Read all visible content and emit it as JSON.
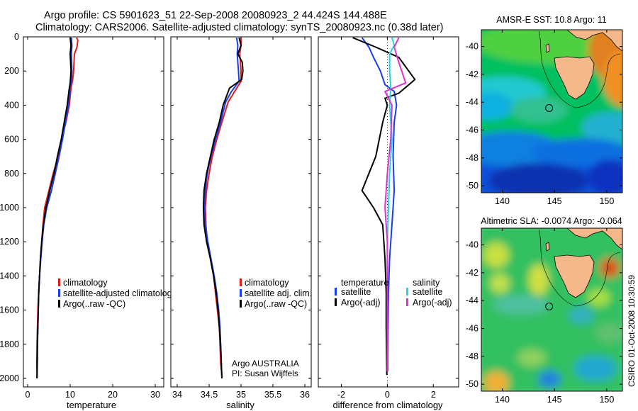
{
  "header": {
    "line1": "Argo profile: CS 5901623_51 22-Sep-2008 20080923_2 44.424S 144.488E",
    "line2": "Climatology: CARS2006. Satellite-adjusted climatology: synTS_20080923.nc (0.38d later)"
  },
  "side_stamp": "CSIRO 01-Oct-2008 10:30:59",
  "colors": {
    "climatology": "#e8191b",
    "satellite": "#1a3cf0",
    "argo": "#000000",
    "sal_satellite": "#22d6e0",
    "sal_argo": "#e030d0",
    "land": "#f5b88a"
  },
  "chart_data": [
    {
      "type": "line",
      "xlabel": "temperature",
      "xlim": [
        -1,
        32
      ],
      "xticks": [
        "0",
        "10",
        "20",
        "30"
      ],
      "xtick_values": [
        0,
        10,
        20,
        30
      ],
      "ylim": [
        0,
        2050
      ],
      "yticks": [
        "0",
        "200",
        "400",
        "600",
        "800",
        "1000",
        "1200",
        "1400",
        "1600",
        "1800",
        "2000"
      ],
      "ytick_values": [
        0,
        200,
        400,
        600,
        800,
        1000,
        1200,
        1400,
        1600,
        1800,
        2000
      ],
      "y_reversed": true,
      "legend": [
        {
          "label": "climatology",
          "color": "#e8191b"
        },
        {
          "label": "satellite-adjusted climatology",
          "color": "#1a3cf0"
        },
        {
          "label": "Argo(..raw -QC)",
          "color": "#000000"
        }
      ],
      "legend_position": "bottom-right",
      "series": [
        {
          "name": "climatology",
          "color": "#e8191b",
          "points": [
            [
              11.5,
              5
            ],
            [
              11.8,
              20
            ],
            [
              11.6,
              60
            ],
            [
              11.0,
              100
            ],
            [
              10.8,
              200
            ],
            [
              10.6,
              250
            ],
            [
              10.2,
              300
            ],
            [
              9.8,
              400
            ],
            [
              9.0,
              500
            ],
            [
              8.0,
              600
            ],
            [
              7.2,
              700
            ],
            [
              6.0,
              800
            ],
            [
              5.0,
              900
            ],
            [
              4.0,
              1000
            ],
            [
              3.6,
              1100
            ],
            [
              3.3,
              1200
            ],
            [
              3.0,
              1300
            ],
            [
              2.8,
              1400
            ],
            [
              2.6,
              1500
            ],
            [
              2.4,
              1600
            ],
            [
              2.3,
              1700
            ],
            [
              2.2,
              1800
            ],
            [
              2.2,
              1900
            ],
            [
              2.2,
              1950
            ]
          ]
        },
        {
          "name": "satellite-adjusted climatology",
          "color": "#1a3cf0",
          "points": [
            [
              10.3,
              5
            ],
            [
              10.4,
              50
            ],
            [
              10.3,
              100
            ],
            [
              10.4,
              200
            ],
            [
              10.3,
              250
            ],
            [
              10.0,
              300
            ],
            [
              9.6,
              400
            ],
            [
              8.9,
              500
            ],
            [
              8.2,
              600
            ],
            [
              7.4,
              700
            ],
            [
              6.5,
              800
            ],
            [
              5.6,
              900
            ],
            [
              4.5,
              1000
            ],
            [
              3.8,
              1100
            ],
            [
              3.4,
              1200
            ],
            [
              3.1,
              1300
            ],
            [
              2.8,
              1400
            ],
            [
              2.6,
              1500
            ],
            [
              2.5,
              1600
            ],
            [
              2.4,
              1700
            ],
            [
              2.3,
              1800
            ],
            [
              2.3,
              1900
            ],
            [
              2.2,
              2000
            ]
          ]
        },
        {
          "name": "Argo(..raw -QC)",
          "color": "#000000",
          "points": [
            [
              10.0,
              5
            ],
            [
              10.2,
              50
            ],
            [
              10.0,
              100
            ],
            [
              10.2,
              200
            ],
            [
              10.0,
              270
            ],
            [
              9.8,
              300
            ],
            [
              9.3,
              400
            ],
            [
              8.6,
              500
            ],
            [
              7.9,
              600
            ],
            [
              7.0,
              700
            ],
            [
              6.2,
              800
            ],
            [
              5.2,
              900
            ],
            [
              4.3,
              1000
            ],
            [
              3.7,
              1100
            ],
            [
              3.3,
              1200
            ],
            [
              3.0,
              1300
            ],
            [
              2.8,
              1400
            ],
            [
              2.6,
              1500
            ],
            [
              2.5,
              1600
            ],
            [
              2.4,
              1700
            ],
            [
              2.3,
              1800
            ],
            [
              2.2,
              1900
            ],
            [
              2.2,
              2000
            ]
          ]
        }
      ]
    },
    {
      "type": "line",
      "xlabel": "salinity",
      "xlim": [
        33.9,
        36.1
      ],
      "xticks": [
        "34",
        "34.5",
        "35",
        "35.5",
        "36"
      ],
      "xtick_values": [
        34,
        34.5,
        35,
        35.5,
        36
      ],
      "ylim": [
        0,
        2050
      ],
      "y_reversed": true,
      "legend": [
        {
          "label": "climatology",
          "color": "#e8191b"
        },
        {
          "label": "satellite adj. clim.",
          "color": "#1a3cf0"
        },
        {
          "label": "Argo(..raw -QC)",
          "color": "#000000"
        }
      ],
      "legend_position": "bottom-right",
      "annotation": [
        "Argo AUSTRALIA",
        "PI: Susan Wijffels"
      ],
      "series": [
        {
          "name": "climatology",
          "color": "#e8191b",
          "points": [
            [
              35.0,
              5
            ],
            [
              35.0,
              50
            ],
            [
              34.98,
              100
            ],
            [
              35.0,
              200
            ],
            [
              35.0,
              260
            ],
            [
              34.9,
              320
            ],
            [
              34.8,
              380
            ],
            [
              34.75,
              440
            ],
            [
              34.7,
              500
            ],
            [
              34.62,
              600
            ],
            [
              34.55,
              700
            ],
            [
              34.5,
              800
            ],
            [
              34.46,
              900
            ],
            [
              34.44,
              1000
            ],
            [
              34.45,
              1100
            ],
            [
              34.47,
              1200
            ],
            [
              34.52,
              1300
            ],
            [
              34.57,
              1400
            ],
            [
              34.6,
              1500
            ],
            [
              34.63,
              1600
            ],
            [
              34.66,
              1700
            ],
            [
              34.67,
              1800
            ],
            [
              34.68,
              1900
            ],
            [
              34.69,
              1950
            ]
          ]
        },
        {
          "name": "satellite adj. clim.",
          "color": "#1a3cf0",
          "points": [
            [
              34.93,
              5
            ],
            [
              34.95,
              50
            ],
            [
              34.94,
              100
            ],
            [
              34.96,
              200
            ],
            [
              34.97,
              260
            ],
            [
              34.85,
              320
            ],
            [
              34.76,
              380
            ],
            [
              34.72,
              440
            ],
            [
              34.68,
              500
            ],
            [
              34.6,
              600
            ],
            [
              34.53,
              700
            ],
            [
              34.47,
              800
            ],
            [
              34.44,
              900
            ],
            [
              34.43,
              1000
            ],
            [
              34.44,
              1100
            ],
            [
              34.48,
              1200
            ],
            [
              34.53,
              1300
            ],
            [
              34.58,
              1400
            ],
            [
              34.62,
              1500
            ],
            [
              34.65,
              1600
            ],
            [
              34.67,
              1700
            ],
            [
              34.68,
              1800
            ],
            [
              34.69,
              1900
            ],
            [
              34.7,
              2000
            ]
          ]
        },
        {
          "name": "Argo(..raw -QC)",
          "color": "#000000",
          "points": [
            [
              34.97,
              5
            ],
            [
              35.0,
              50
            ],
            [
              34.95,
              100
            ],
            [
              35.02,
              150
            ],
            [
              35.03,
              200
            ],
            [
              35.01,
              250
            ],
            [
              34.82,
              300
            ],
            [
              34.72,
              400
            ],
            [
              34.66,
              500
            ],
            [
              34.58,
              600
            ],
            [
              34.52,
              700
            ],
            [
              34.46,
              800
            ],
            [
              34.42,
              900
            ],
            [
              34.41,
              1000
            ],
            [
              34.42,
              1100
            ],
            [
              34.46,
              1200
            ],
            [
              34.52,
              1300
            ],
            [
              34.57,
              1400
            ],
            [
              34.61,
              1500
            ],
            [
              34.64,
              1600
            ],
            [
              34.66,
              1700
            ],
            [
              34.68,
              1800
            ],
            [
              34.69,
              1900
            ],
            [
              34.7,
              2000
            ]
          ]
        }
      ]
    },
    {
      "type": "line",
      "xlabel": "difference from climatology",
      "xlim": [
        -3,
        3.1
      ],
      "xticks": [
        "-2",
        "0",
        "2"
      ],
      "xtick_values": [
        -2,
        0,
        2
      ],
      "ylim": [
        0,
        2050
      ],
      "y_reversed": true,
      "zero_line": "dotted",
      "legend": [
        {
          "group": "temperature",
          "label": "satellite",
          "color": "#1a3cf0"
        },
        {
          "group": "temperature",
          "label": "Argo(-adj)",
          "color": "#000000"
        },
        {
          "group": "salinity",
          "label": "satellite",
          "color": "#22d6e0"
        },
        {
          "group": "salinity",
          "label": "Argo(-adj)",
          "color": "#e030d0"
        }
      ],
      "legend_titles": [
        "temperature",
        "salinity"
      ],
      "legend_position": "bottom",
      "series": [
        {
          "name": "temperature satellite",
          "color": "#1a3cf0",
          "points": [
            [
              -1.1,
              5
            ],
            [
              -0.8,
              60
            ],
            [
              -0.6,
              120
            ],
            [
              -0.3,
              200
            ],
            [
              -0.1,
              280
            ],
            [
              0.3,
              320
            ],
            [
              0.4,
              400
            ],
            [
              0.3,
              500
            ],
            [
              0.25,
              700
            ],
            [
              0.3,
              900
            ],
            [
              0.2,
              1100
            ],
            [
              0.1,
              1300
            ],
            [
              0.05,
              1500
            ],
            [
              0.03,
              1700
            ],
            [
              0.02,
              1900
            ],
            [
              0.02,
              1960
            ]
          ]
        },
        {
          "name": "temperature Argo(-adj)",
          "color": "#000000",
          "points": [
            [
              -1.5,
              5
            ],
            [
              -0.5,
              60
            ],
            [
              0.5,
              120
            ],
            [
              1.2,
              250
            ],
            [
              0.5,
              330
            ],
            [
              -0.1,
              360
            ],
            [
              0.0,
              400
            ],
            [
              -0.2,
              500
            ],
            [
              -0.5,
              700
            ],
            [
              -1.1,
              900
            ],
            [
              -0.6,
              1000
            ],
            [
              -0.2,
              1100
            ],
            [
              -0.1,
              1300
            ],
            [
              -0.05,
              1500
            ],
            [
              -0.05,
              1700
            ],
            [
              -0.03,
              1900
            ],
            [
              -0.02,
              1980
            ]
          ]
        },
        {
          "name": "salinity satellite",
          "color": "#22d6e0",
          "points": [
            [
              0.2,
              5
            ],
            [
              0.3,
              50
            ],
            [
              0.1,
              100
            ],
            [
              0.1,
              200
            ],
            [
              0.15,
              300
            ],
            [
              0.1,
              400
            ],
            [
              0.2,
              600
            ],
            [
              0.1,
              800
            ],
            [
              0.05,
              1000
            ],
            [
              0.0,
              1200
            ],
            [
              0.0,
              1400
            ],
            [
              0.0,
              1600
            ],
            [
              0.0,
              1800
            ],
            [
              0.0,
              1960
            ]
          ]
        },
        {
          "name": "salinity Argo(-adj)",
          "color": "#e030d0",
          "points": [
            [
              0.5,
              5
            ],
            [
              0.3,
              60
            ],
            [
              0.5,
              150
            ],
            [
              0.8,
              270
            ],
            [
              -0.1,
              320
            ],
            [
              0.2,
              400
            ],
            [
              0.15,
              600
            ],
            [
              0.0,
              800
            ],
            [
              -0.1,
              1000
            ],
            [
              0.0,
              1200
            ],
            [
              0.0,
              1400
            ],
            [
              0.0,
              1600
            ],
            [
              0.0,
              1800
            ],
            [
              0.0,
              1960
            ]
          ]
        }
      ]
    },
    {
      "type": "heatmap",
      "title": "AMSR-E SST: 10.8 Argo: 11",
      "xticks": [
        "140",
        "145",
        "150"
      ],
      "xtick_values": [
        140,
        145,
        150
      ],
      "yticks": [
        "-40",
        "-42",
        "-44",
        "-46",
        "-48",
        "-50"
      ],
      "ytick_values": [
        -40,
        -42,
        -44,
        -46,
        -48,
        -50
      ],
      "xlim": [
        138,
        151.5
      ],
      "ylim": [
        -50.5,
        -38.8
      ],
      "marker": [
        144.49,
        -44.42
      ]
    },
    {
      "type": "heatmap",
      "title": "Altimetric SLA: -0.0074 Argo: -0.064",
      "xticks": [
        "140",
        "145",
        "150"
      ],
      "xtick_values": [
        140,
        145,
        150
      ],
      "yticks": [
        "-40",
        "-42",
        "-44",
        "-46",
        "-48",
        "-50"
      ],
      "ytick_values": [
        -40,
        -42,
        -44,
        -46,
        -48,
        -50
      ],
      "xlim": [
        138,
        151.5
      ],
      "ylim": [
        -50.5,
        -38.8
      ],
      "marker": [
        144.49,
        -44.42
      ]
    }
  ]
}
